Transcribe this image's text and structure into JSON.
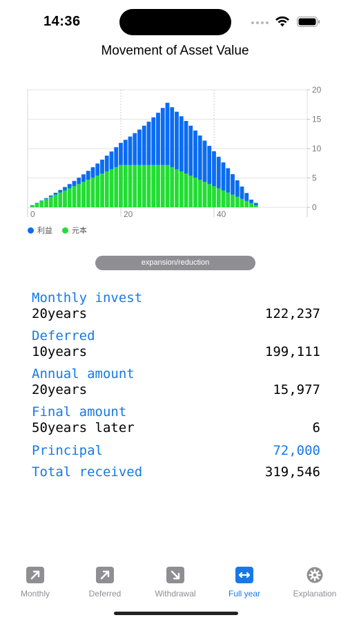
{
  "status_bar": {
    "time": "14:36"
  },
  "title": "Movement of Asset Value",
  "chart_data": {
    "type": "bar",
    "stacked": true,
    "x": [
      1,
      2,
      3,
      4,
      5,
      6,
      7,
      8,
      9,
      10,
      11,
      12,
      13,
      14,
      15,
      16,
      17,
      18,
      19,
      20,
      21,
      22,
      23,
      24,
      25,
      26,
      27,
      28,
      29,
      30,
      31,
      32,
      33,
      34,
      35,
      36,
      37,
      38,
      39,
      40,
      41,
      42,
      43,
      44,
      45,
      46,
      47,
      48,
      49,
      50
    ],
    "series": [
      {
        "name": "元本",
        "color": "#22dd33",
        "values": [
          0.36,
          0.72,
          1.08,
          1.44,
          1.8,
          2.16,
          2.52,
          2.88,
          3.24,
          3.6,
          3.96,
          4.32,
          4.68,
          5.04,
          5.4,
          5.76,
          6.12,
          6.48,
          6.84,
          7.2,
          7.2,
          7.2,
          7.2,
          7.2,
          7.2,
          7.2,
          7.2,
          7.2,
          7.2,
          7.2,
          6.84,
          6.48,
          6.12,
          5.76,
          5.4,
          5.04,
          4.68,
          4.32,
          3.96,
          3.6,
          3.24,
          2.88,
          2.52,
          2.16,
          1.8,
          1.44,
          1.08,
          0.72,
          0.36,
          0.0
        ]
      },
      {
        "name": "利益",
        "color": "#0a6cf2",
        "values": [
          0.01,
          0.04,
          0.08,
          0.14,
          0.22,
          0.32,
          0.44,
          0.58,
          0.73,
          0.9,
          1.09,
          1.3,
          1.53,
          1.79,
          2.06,
          2.36,
          2.68,
          3.02,
          3.39,
          3.78,
          4.3,
          4.85,
          5.43,
          6.04,
          6.7,
          7.38,
          8.12,
          8.9,
          9.72,
          10.6,
          10.2,
          9.8,
          9.38,
          8.95,
          8.5,
          8.04,
          7.55,
          7.04,
          6.5,
          5.95,
          5.37,
          4.77,
          4.14,
          3.48,
          2.8,
          2.1,
          1.36,
          0.59,
          0.4,
          0.0
        ]
      }
    ],
    "xticks": [
      0,
      20,
      40
    ],
    "yticks": [
      0,
      5,
      10,
      15,
      20
    ],
    "xlim": [
      0,
      60
    ],
    "ylim": [
      0,
      20
    ],
    "grid": true,
    "y_axis_side": "right",
    "legend_position": "bottom-left"
  },
  "expand_button": "expansion/reduction",
  "results": [
    {
      "label": "Monthly invest",
      "left": "20years",
      "right": "122,237",
      "right_blue": false
    },
    {
      "label": "Deferred",
      "left": "10years",
      "right": "199,111",
      "right_blue": false
    },
    {
      "label": "Annual amount",
      "left": "20years",
      "right": "15,977",
      "right_blue": false
    },
    {
      "label": "Final amount",
      "left": "50years later",
      "right": "6",
      "right_blue": false
    },
    {
      "label": "",
      "left": "Principal",
      "right": "72,000",
      "right_blue": true
    },
    {
      "label": "",
      "left": "Total received",
      "right": "319,546",
      "right_blue": false
    }
  ],
  "tabs": [
    {
      "label": "Monthly",
      "icon": "arrow-up-right-square-icon",
      "active": false
    },
    {
      "label": "Deferred",
      "icon": "arrow-up-right-square-icon",
      "active": false
    },
    {
      "label": "Withdrawal",
      "icon": "arrow-down-right-square-icon",
      "active": false
    },
    {
      "label": "Full year",
      "icon": "arrow-left-right-square-icon",
      "active": true
    },
    {
      "label": "Explanation",
      "icon": "gear-icon",
      "active": false
    }
  ],
  "colors": {
    "accent": "#1778e6",
    "inactive": "#8e8e93"
  }
}
